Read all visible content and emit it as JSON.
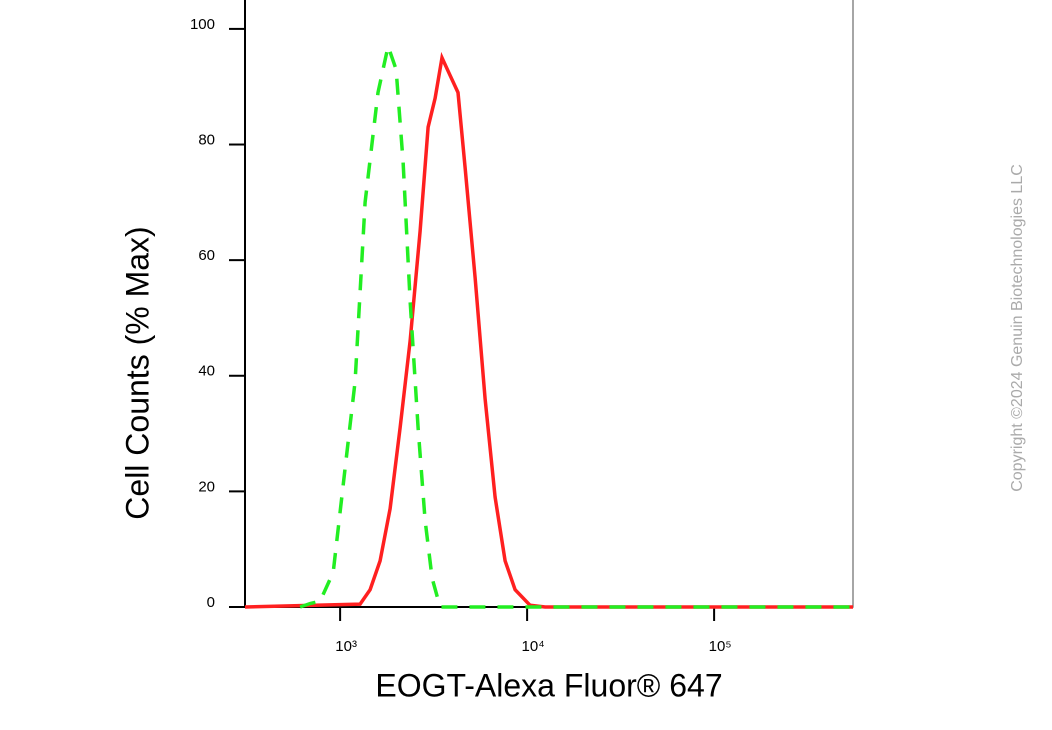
{
  "chart_data": {
    "type": "line",
    "x_label": "EOGT-Alexa Fluor® 647",
    "y_label": "Cell Counts (% Max)",
    "watermark": "Copyright ©2024 Genuin Biotechnologies LLC",
    "xscale": "log",
    "xlim": [
      310,
      553000
    ],
    "ylim": [
      0,
      105
    ],
    "xticks": [
      {
        "value": 1000,
        "label": "10³"
      },
      {
        "value": 10000,
        "label": "10⁴"
      },
      {
        "value": 100000,
        "label": "10⁵"
      }
    ],
    "yticks": [
      0,
      20,
      40,
      60,
      80,
      100
    ],
    "series": [
      {
        "color": "#ff2020",
        "dash": false,
        "x": [
          310,
          1279,
          1446,
          1636,
          1850,
          2093,
          2367,
          2678,
          2956,
          3222,
          3508,
          3871,
          4271,
          4660,
          5272,
          5960,
          6743,
          7626,
          8630,
          10380,
          12475,
          553000
        ],
        "values": [
          0,
          0.5,
          3,
          8,
          17,
          31,
          46,
          65,
          83,
          88,
          95,
          92,
          89,
          76,
          57,
          36,
          19,
          8,
          3,
          0.3,
          0,
          0
        ]
      },
      {
        "color": "#22ee22",
        "dash": true,
        "x": [
          611,
          692,
          782,
          918,
          1063,
          1203,
          1360,
          1595,
          1806,
          1992,
          2172,
          2367,
          2612,
          2849,
          3105,
          3425,
          553000
        ],
        "values": [
          0,
          0.6,
          1,
          6,
          24,
          39,
          70,
          89,
          97,
          93,
          77,
          53,
          31,
          15,
          5,
          0,
          0
        ]
      }
    ]
  }
}
